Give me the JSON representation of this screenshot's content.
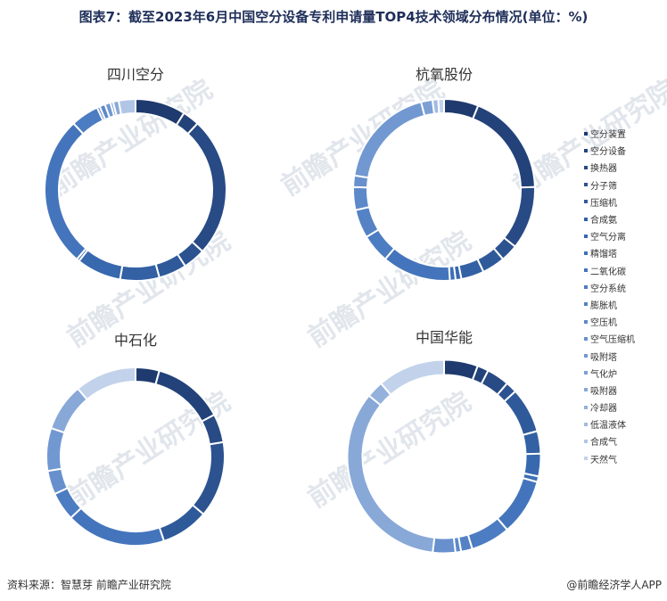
{
  "title": "图表7：截至2023年6月中国空分设备专利申请量TOP4技术领域分布情况(单位：%)",
  "footer": {
    "source": "资料来源：智慧芽 前瞻产业研究院",
    "brand": "@前瞻经济学人APP"
  },
  "watermark": "前瞻产业研究院",
  "colors": [
    "#1f3a6e",
    "#23427a",
    "#284a85",
    "#2c5290",
    "#2f5a9a",
    "#3361a4",
    "#3868ae",
    "#3d6fb6",
    "#4475bc",
    "#4c7cc1",
    "#5482c5",
    "#5d89c9",
    "#6790cd",
    "#7198d1",
    "#7ca0d4",
    "#88a8d8",
    "#94b1dc",
    "#a2bbe1",
    "#b1c6e6",
    "#c2d2eb",
    "#d6e1f1"
  ],
  "chart_data": [
    {
      "type": "pie",
      "title": "四川空分",
      "categories": [
        "空分装置",
        "空分设备",
        "换热器",
        "分子筛",
        "压缩机",
        "合成氨",
        "空气分离",
        "精馏塔",
        "二氧化碳",
        "空分系统",
        "膨胀机",
        "空压机",
        "空气压缩机",
        "吸附塔",
        "气化炉",
        "吸附器",
        "冷却器",
        "低温液体",
        "合成气",
        "天然气"
      ],
      "values": [
        9,
        3,
        25,
        4,
        5,
        7,
        8,
        0.5,
        27,
        5,
        0.5,
        1,
        0,
        1,
        0.5,
        1,
        0,
        0,
        3,
        0
      ],
      "colors": [
        "#1f3a6e",
        "#23427a",
        "#284a85",
        "#2c5290",
        "#2f5a9a",
        "#3361a4",
        "#3868ae",
        "#3d6fb6",
        "#4475bc",
        "#4c7cc1",
        "#5482c5",
        "#5d89c9",
        "#6790cd",
        "#7198d1",
        "#7ca0d4",
        "#88a8d8",
        "#94b1dc",
        "#a2bbe1",
        "#b1c6e6",
        "#c2d2eb"
      ]
    },
    {
      "type": "pie",
      "title": "杭氧股份",
      "categories": [
        "空分装置",
        "空分设备",
        "换热器",
        "分子筛",
        "压缩机",
        "合成氨",
        "空气分离",
        "精馏塔",
        "二氧化碳",
        "空分系统",
        "膨胀机",
        "空压机",
        "空气压缩机",
        "吸附塔",
        "气化炉",
        "吸附器",
        "冷却器",
        "低温液体",
        "合成气",
        "天然气"
      ],
      "values": [
        6,
        18,
        11,
        3,
        4,
        4,
        1,
        1,
        12,
        5,
        5,
        4,
        2,
        18,
        2,
        0,
        0,
        1,
        0,
        1
      ],
      "colors": [
        "#1f3a6e",
        "#23427a",
        "#284a85",
        "#2c5290",
        "#2f5a9a",
        "#3361a4",
        "#3868ae",
        "#3d6fb6",
        "#4475bc",
        "#4c7cc1",
        "#5482c5",
        "#5d89c9",
        "#6790cd",
        "#7198d1",
        "#7ca0d4",
        "#88a8d8",
        "#94b1dc",
        "#a2bbe1",
        "#b1c6e6",
        "#c2d2eb"
      ]
    },
    {
      "type": "pie",
      "title": "中石化",
      "categories": [
        "空分装置",
        "空分设备",
        "换热器",
        "分子筛",
        "压缩机",
        "合成氨",
        "空气分离",
        "精馏塔",
        "二氧化碳",
        "空分系统",
        "膨胀机",
        "空压机",
        "空气压缩机",
        "吸附塔",
        "气化炉",
        "吸附器",
        "冷却器",
        "低温液体",
        "合成气",
        "天然气"
      ],
      "values": [
        5,
        15,
        6,
        16,
        10,
        0,
        0,
        0,
        21,
        6,
        0,
        0,
        5,
        9,
        0,
        10,
        0,
        0,
        0,
        13
      ],
      "colors": [
        "#1f3a6e",
        "#23427a",
        "#284a85",
        "#2c5290",
        "#2f5a9a",
        "#3361a4",
        "#3868ae",
        "#3d6fb6",
        "#4475bc",
        "#4c7cc1",
        "#5482c5",
        "#5d89c9",
        "#6790cd",
        "#7198d1",
        "#7ca0d4",
        "#88a8d8",
        "#94b1dc",
        "#a2bbe1",
        "#b1c6e6",
        "#c2d2eb"
      ]
    },
    {
      "type": "pie",
      "title": "中国华能",
      "categories": [
        "空分装置",
        "空分设备",
        "换热器",
        "分子筛",
        "压缩机",
        "合成氨",
        "空气分离",
        "精馏塔",
        "二氧化碳",
        "空分系统",
        "膨胀机",
        "空压机",
        "空气压缩机",
        "吸附塔",
        "气化炉",
        "吸附器",
        "冷却器",
        "低温液体",
        "合成气",
        "天然气"
      ],
      "values": [
        6,
        2,
        4,
        2,
        8,
        4,
        4,
        1,
        10,
        7,
        2,
        1,
        4,
        0,
        0,
        36,
        3,
        0,
        0,
        12
      ],
      "colors": [
        "#1f3a6e",
        "#23427a",
        "#284a85",
        "#2c5290",
        "#2f5a9a",
        "#3361a4",
        "#3868ae",
        "#3d6fb6",
        "#4475bc",
        "#4c7cc1",
        "#5482c5",
        "#5d89c9",
        "#6790cd",
        "#7198d1",
        "#7ca0d4",
        "#88a8d8",
        "#94b1dc",
        "#a2bbe1",
        "#b1c6e6",
        "#c2d2eb"
      ]
    }
  ],
  "legend": [
    {
      "label": "空分装置",
      "color": "#1f3a6e"
    },
    {
      "label": "空分设备",
      "color": "#23427a"
    },
    {
      "label": "换热器",
      "color": "#284a85"
    },
    {
      "label": "分子筛",
      "color": "#2c5290"
    },
    {
      "label": "压缩机",
      "color": "#2f5a9a"
    },
    {
      "label": "合成氨",
      "color": "#3361a4"
    },
    {
      "label": "空气分离",
      "color": "#3868ae"
    },
    {
      "label": "精馏塔",
      "color": "#3d6fb6"
    },
    {
      "label": "二氧化碳",
      "color": "#4475bc"
    },
    {
      "label": "空分系统",
      "color": "#4c7cc1"
    },
    {
      "label": "膨胀机",
      "color": "#5482c5"
    },
    {
      "label": "空压机",
      "color": "#5d89c9"
    },
    {
      "label": "空气压缩机",
      "color": "#6790cd"
    },
    {
      "label": "吸附塔",
      "color": "#7198d1"
    },
    {
      "label": "气化炉",
      "color": "#7ca0d4"
    },
    {
      "label": "吸附器",
      "color": "#88a8d8"
    },
    {
      "label": "冷却器",
      "color": "#94b1dc"
    },
    {
      "label": "低温液体",
      "color": "#a2bbe1"
    },
    {
      "label": "合成气",
      "color": "#b1c6e6"
    },
    {
      "label": "天然气",
      "color": "#c2d2eb"
    }
  ]
}
